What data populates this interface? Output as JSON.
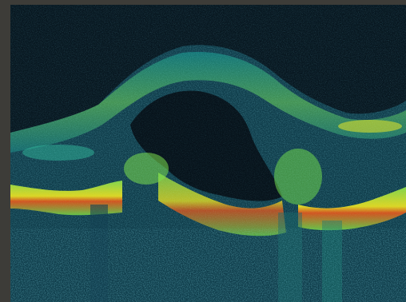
{
  "image": {
    "kind": "oct-bscan",
    "palette": {
      "background": "#0a1a24",
      "border": "#3d3c38",
      "low": "#0f3a4a",
      "mid": "#1f9e9a",
      "high": "#7be04a",
      "peak": "#f0e020",
      "hot": "#e84a1a"
    }
  }
}
